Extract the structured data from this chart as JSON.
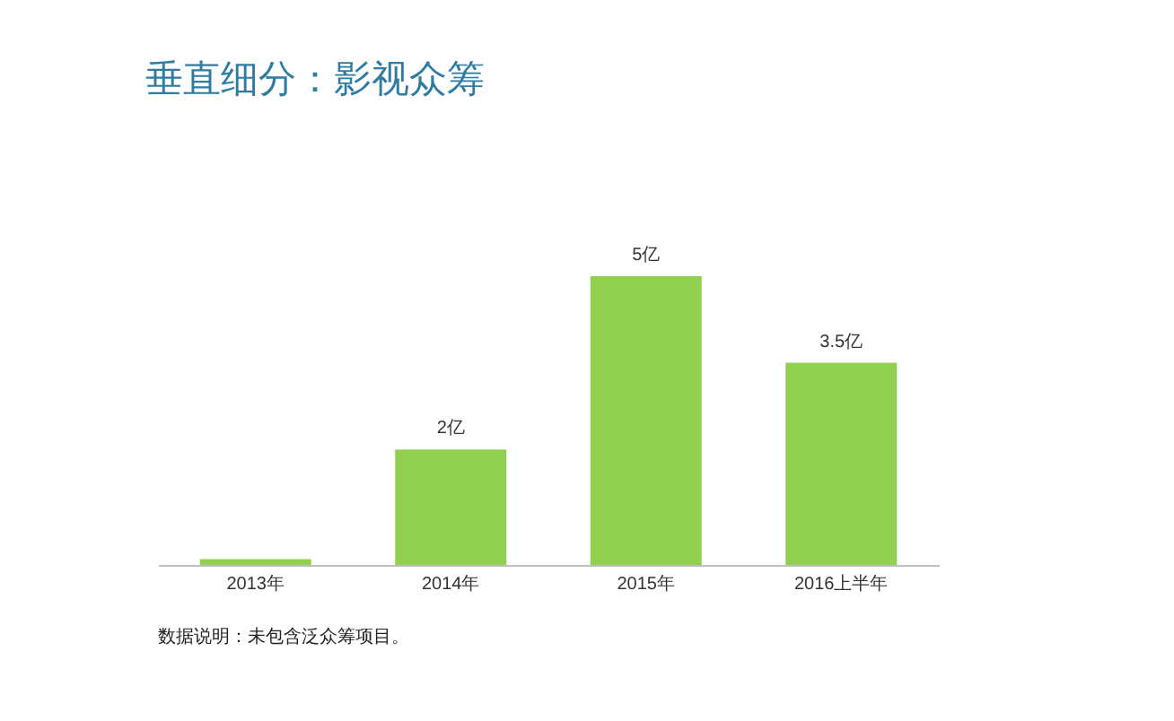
{
  "chart_data": {
    "type": "bar",
    "title": "垂直细分：影视众筹",
    "categories": [
      "2013年",
      "2014年",
      "2015年",
      "2016上半年"
    ],
    "values": [
      0.1,
      2,
      5,
      3.5
    ],
    "value_labels": [
      null,
      "2亿",
      "5亿",
      "3.5亿"
    ],
    "color": "#92d050",
    "annotations": [
      "数据说明：未包含泛众筹项目。"
    ]
  }
}
